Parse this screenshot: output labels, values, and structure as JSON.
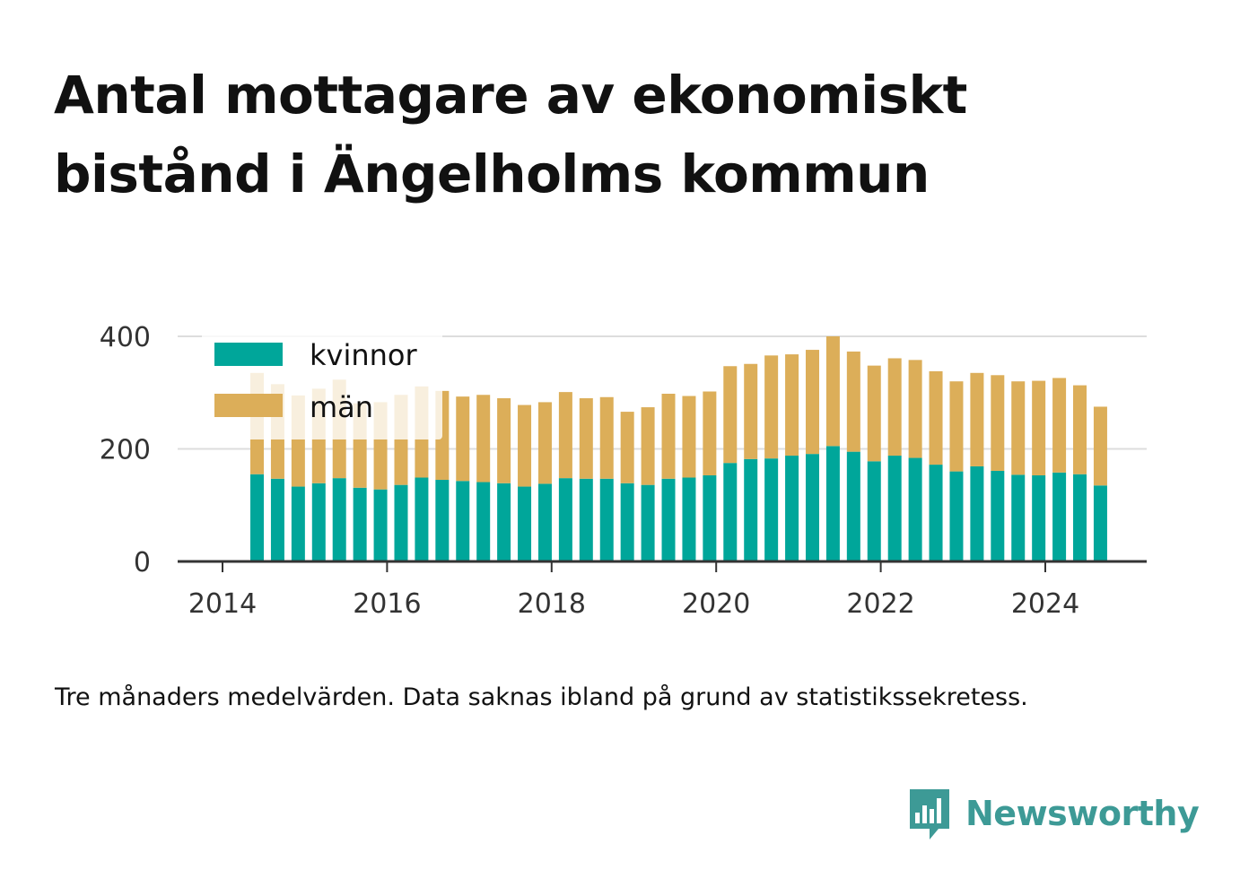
{
  "title": "Antal mottagare av ekonomiskt bistånd i Ängelholms kommun",
  "footnote": "Tre månaders medelvärden. Data saknas ibland på grund av statistikssekretess.",
  "brand": {
    "name": "Newsworthy",
    "logo_icon": "bar-chart-speech-bubble-icon"
  },
  "colors": {
    "kvinnor": "#00a69a",
    "man": "#dcae59",
    "grid": "#dddddd",
    "axis": "#333333",
    "brand": "#3d9a96"
  },
  "chart_data": {
    "type": "bar",
    "stacked": true,
    "x_unit": "year",
    "x": [
      2014.42,
      2014.67,
      2014.92,
      2015.17,
      2015.42,
      2015.67,
      2015.92,
      2016.17,
      2016.42,
      2016.67,
      2016.92,
      2017.17,
      2017.42,
      2017.67,
      2017.92,
      2018.17,
      2018.42,
      2018.67,
      2018.92,
      2019.17,
      2019.42,
      2019.67,
      2019.92,
      2020.17,
      2020.42,
      2020.67,
      2020.92,
      2021.17,
      2021.42,
      2021.67,
      2021.92,
      2022.17,
      2022.42,
      2022.67,
      2022.92,
      2023.17,
      2023.42,
      2023.67,
      2023.92,
      2024.17,
      2024.42,
      2024.67
    ],
    "series": [
      {
        "name": "kvinnor",
        "values": [
          155,
          147,
          133,
          139,
          148,
          131,
          128,
          136,
          149,
          145,
          143,
          141,
          139,
          133,
          138,
          148,
          147,
          147,
          139,
          136,
          147,
          149,
          153,
          175,
          182,
          183,
          188,
          191,
          205,
          195,
          178,
          188,
          184,
          172,
          160,
          169,
          161,
          154,
          153,
          158,
          155,
          135
        ]
      },
      {
        "name": "män",
        "values": [
          180,
          168,
          162,
          168,
          175,
          150,
          155,
          160,
          162,
          158,
          150,
          155,
          151,
          145,
          145,
          153,
          143,
          145,
          127,
          138,
          151,
          145,
          149,
          172,
          169,
          183,
          180,
          185,
          195,
          178,
          170,
          173,
          174,
          166,
          160,
          166,
          170,
          166,
          168,
          168,
          158,
          140
        ]
      }
    ],
    "legend": [
      "kvinnor",
      "män"
    ],
    "legend_position": "top-left",
    "yticks": [
      "0",
      "200",
      "400"
    ],
    "xticks": [
      "2014",
      "2016",
      "2018",
      "2020",
      "2022",
      "2024"
    ],
    "xlim": [
      2014,
      2025.3
    ],
    "ylim": [
      0,
      400
    ],
    "grid": "horizontal"
  }
}
